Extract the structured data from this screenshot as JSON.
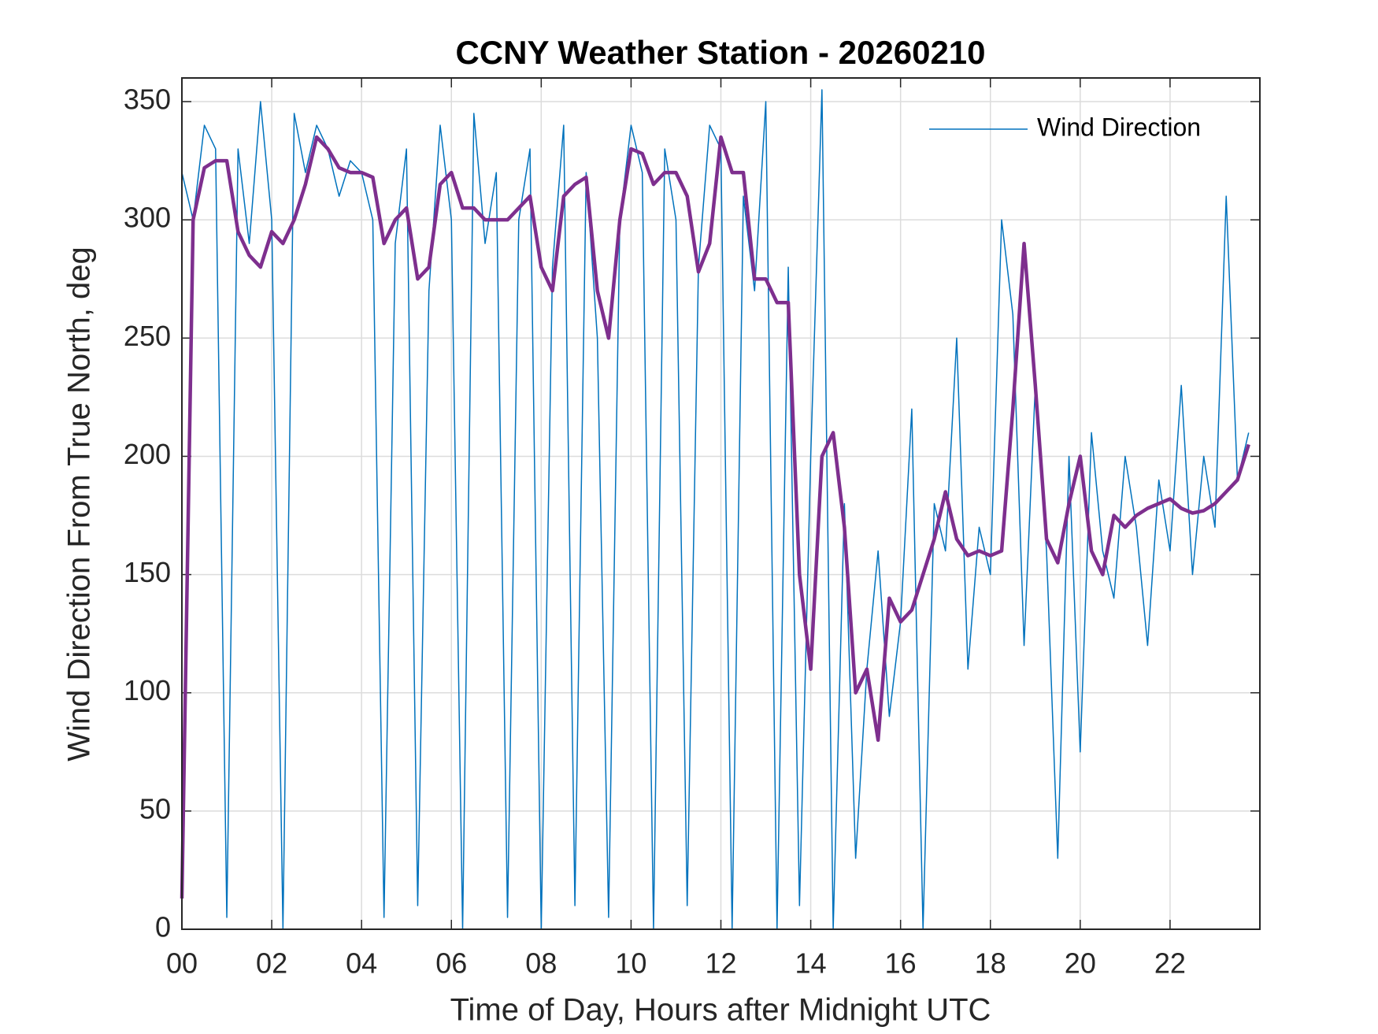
{
  "chart_data": {
    "type": "line",
    "title": "CCNY Weather Station - 20260210",
    "x_label": "Time of Day, Hours after Midnight UTC",
    "y_label": "Wind Direction From True North, deg",
    "x": [
      0,
      0.25,
      0.5,
      0.75,
      1,
      1.25,
      1.5,
      1.75,
      2,
      2.25,
      2.5,
      2.75,
      3,
      3.25,
      3.5,
      3.75,
      4,
      4.25,
      4.5,
      4.75,
      5,
      5.25,
      5.5,
      5.75,
      6,
      6.25,
      6.5,
      6.75,
      7,
      7.25,
      7.5,
      7.75,
      8,
      8.25,
      8.5,
      8.75,
      9,
      9.25,
      9.5,
      9.75,
      10,
      10.25,
      10.5,
      10.75,
      11,
      11.25,
      11.5,
      11.75,
      12,
      12.25,
      12.5,
      12.75,
      13,
      13.25,
      13.5,
      13.75,
      14,
      14.25,
      14.5,
      14.75,
      15,
      15.25,
      15.5,
      15.75,
      16,
      16.25,
      16.5,
      16.75,
      17,
      17.25,
      17.5,
      17.75,
      18,
      18.25,
      18.5,
      18.75,
      19,
      19.25,
      19.5,
      19.75,
      20,
      20.25,
      20.5,
      20.75,
      21,
      21.25,
      21.5,
      21.75,
      22,
      22.25,
      22.5,
      22.75,
      23,
      23.25,
      23.5,
      23.75
    ],
    "series": [
      {
        "name": "Wind Direction",
        "color": "#0072BD",
        "width": 1.5,
        "values": [
          320,
          300,
          340,
          330,
          5,
          330,
          290,
          350,
          300,
          0,
          345,
          320,
          340,
          330,
          310,
          325,
          320,
          300,
          5,
          290,
          330,
          10,
          270,
          340,
          300,
          0,
          345,
          290,
          320,
          5,
          300,
          330,
          0,
          280,
          340,
          10,
          320,
          250,
          5,
          300,
          340,
          320,
          0,
          330,
          300,
          10,
          280,
          340,
          330,
          0,
          310,
          270,
          350,
          0,
          280,
          10,
          200,
          355,
          0,
          180,
          30,
          110,
          160,
          90,
          130,
          220,
          0,
          180,
          160,
          250,
          110,
          170,
          150,
          300,
          260,
          120,
          230,
          160,
          30,
          200,
          75,
          210,
          160,
          140,
          200,
          170,
          120,
          190,
          160,
          230,
          150,
          200,
          170,
          310,
          190,
          210
        ]
      },
      {
        "color": "#7E2F8E",
        "width": 4.5,
        "values": [
          13,
          300,
          322,
          325,
          325,
          295,
          285,
          280,
          295,
          290,
          300,
          315,
          335,
          330,
          322,
          320,
          320,
          318,
          290,
          300,
          305,
          275,
          280,
          315,
          320,
          305,
          305,
          300,
          300,
          300,
          305,
          310,
          280,
          270,
          310,
          315,
          318,
          270,
          250,
          300,
          330,
          328,
          315,
          320,
          320,
          310,
          278,
          290,
          335,
          320,
          320,
          275,
          275,
          265,
          265,
          150,
          110,
          200,
          210,
          170,
          100,
          110,
          80,
          140,
          130,
          135,
          150,
          165,
          185,
          165,
          158,
          160,
          158,
          160,
          220,
          290,
          230,
          165,
          155,
          180,
          200,
          160,
          150,
          175,
          170,
          175,
          178,
          180,
          182,
          178,
          176,
          177,
          180,
          185,
          190,
          205
        ]
      }
    ],
    "xlim": [
      0,
      24
    ],
    "xticks": [
      {
        "value": 0,
        "label": "00"
      },
      {
        "value": 2,
        "label": "02"
      },
      {
        "value": 4,
        "label": "04"
      },
      {
        "value": 6,
        "label": "06"
      },
      {
        "value": 8,
        "label": "08"
      },
      10,
      12,
      14,
      16,
      18,
      20,
      22
    ],
    "ylim": [
      0,
      360
    ],
    "yticks": [
      0,
      50,
      100,
      150,
      200,
      250,
      300,
      350
    ],
    "grid": true,
    "legend": "upper right"
  }
}
